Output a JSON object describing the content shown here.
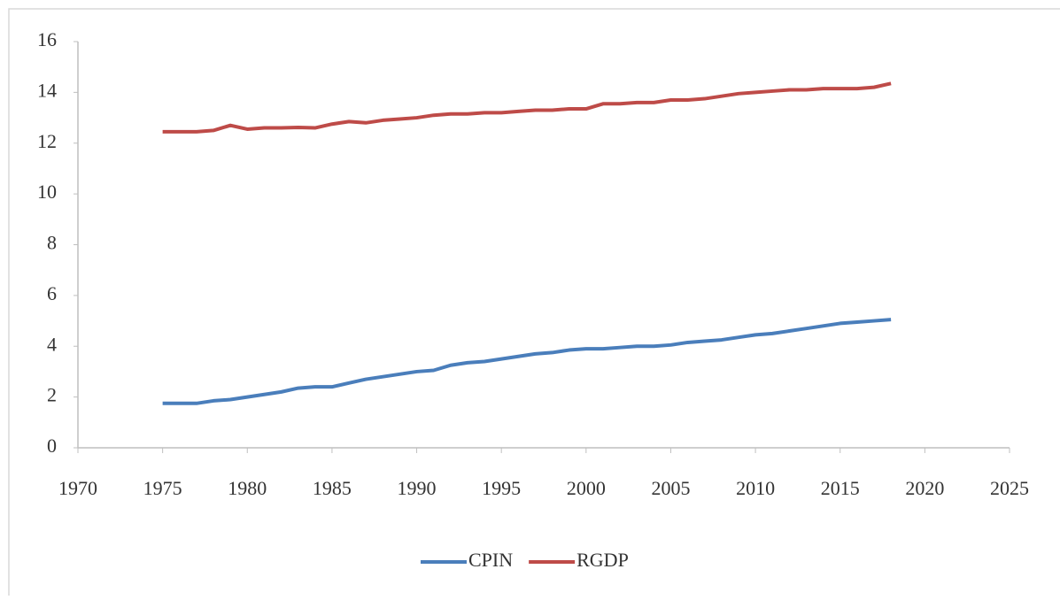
{
  "chart_data": {
    "type": "line",
    "x": [
      1975,
      1976,
      1977,
      1978,
      1979,
      1980,
      1981,
      1982,
      1983,
      1984,
      1985,
      1986,
      1987,
      1988,
      1989,
      1990,
      1991,
      1992,
      1993,
      1994,
      1995,
      1996,
      1997,
      1998,
      1999,
      2000,
      2001,
      2002,
      2003,
      2004,
      2005,
      2006,
      2007,
      2008,
      2009,
      2010,
      2011,
      2012,
      2013,
      2014,
      2015,
      2016,
      2017,
      2018
    ],
    "series": [
      {
        "name": "CPIN",
        "color": "#4a7ebb",
        "values": [
          1.75,
          1.75,
          1.75,
          1.85,
          1.9,
          2.0,
          2.1,
          2.2,
          2.35,
          2.4,
          2.4,
          2.55,
          2.7,
          2.8,
          2.9,
          3.0,
          3.05,
          3.25,
          3.35,
          3.4,
          3.5,
          3.6,
          3.7,
          3.75,
          3.85,
          3.9,
          3.9,
          3.95,
          4.0,
          4.0,
          4.05,
          4.15,
          4.2,
          4.25,
          4.35,
          4.45,
          4.5,
          4.6,
          4.7,
          4.8,
          4.9,
          4.95,
          5.0,
          5.05
        ]
      },
      {
        "name": "RGDP",
        "color": "#be4b48",
        "values": [
          12.45,
          12.45,
          12.45,
          12.5,
          12.7,
          12.55,
          12.6,
          12.6,
          12.62,
          12.6,
          12.75,
          12.85,
          12.8,
          12.9,
          12.95,
          13.0,
          13.1,
          13.15,
          13.15,
          13.2,
          13.2,
          13.25,
          13.3,
          13.3,
          13.35,
          13.35,
          13.55,
          13.55,
          13.6,
          13.6,
          13.7,
          13.7,
          13.75,
          13.85,
          13.95,
          14.0,
          14.05,
          14.1,
          14.1,
          14.15,
          14.15,
          14.15,
          14.2,
          14.35
        ]
      }
    ],
    "xlim": [
      1970,
      2025
    ],
    "xticks": [
      1970,
      1975,
      1980,
      1985,
      1990,
      1995,
      2000,
      2005,
      2010,
      2015,
      2020,
      2025
    ],
    "ylim": [
      0,
      16
    ],
    "yticks": [
      0,
      2,
      4,
      6,
      8,
      10,
      12,
      14,
      16
    ],
    "grid": false,
    "legend": "bottom"
  }
}
